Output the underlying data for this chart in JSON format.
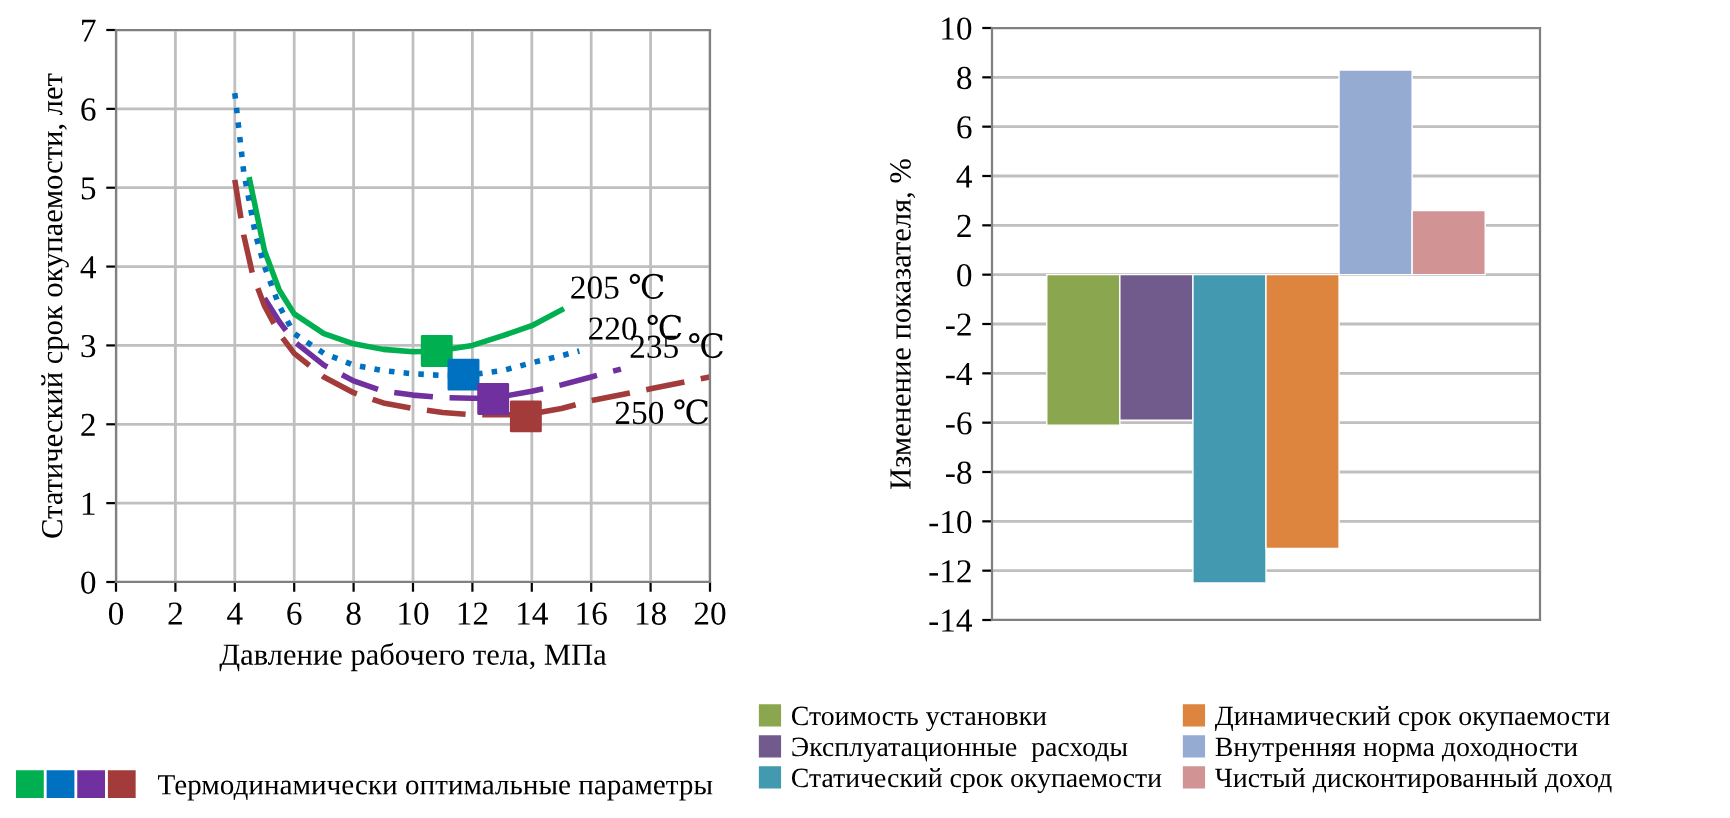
{
  "chart_data": [
    {
      "type": "line",
      "xlabel": "Давление рабочего тела, МПа",
      "ylabel": "Статический срок окупаемости, лет",
      "xlim": [
        0,
        20
      ],
      "ylim": [
        0,
        7
      ],
      "xticks": [
        0,
        2,
        4,
        6,
        8,
        10,
        12,
        14,
        16,
        18,
        20
      ],
      "yticks": [
        0,
        1,
        2,
        3,
        4,
        5,
        6,
        7
      ],
      "grid": true,
      "legend": "bottom",
      "series": [
        {
          "color": "#00b050",
          "line_style": "solid",
          "x": [
            4.5,
            5,
            5.5,
            6,
            7,
            8,
            9,
            10,
            10.8,
            12,
            13,
            14,
            15
          ],
          "values": [
            5.1,
            4.2,
            3.7,
            3.4,
            3.15,
            3.02,
            2.95,
            2.92,
            2.93,
            3.0,
            3.12,
            3.25,
            3.45
          ]
        },
        {
          "color": "#0070c0",
          "line_style": "dotted",
          "x": [
            4,
            4.3,
            4.7,
            5,
            5.5,
            6,
            7,
            8,
            9,
            10,
            11,
            11.8,
            13,
            14,
            15,
            15.6
          ],
          "values": [
            6.2,
            5.2,
            4.4,
            4.0,
            3.5,
            3.15,
            2.9,
            2.75,
            2.68,
            2.64,
            2.62,
            2.62,
            2.68,
            2.78,
            2.87,
            2.93
          ]
        },
        {
          "color": "#7030a0",
          "line_style": "dashed",
          "x": [
            5,
            5.5,
            6,
            7,
            8,
            9,
            10,
            11,
            12,
            12.7,
            14,
            15,
            16,
            17
          ],
          "values": [
            3.6,
            3.3,
            3.05,
            2.75,
            2.55,
            2.42,
            2.37,
            2.34,
            2.33,
            2.33,
            2.42,
            2.5,
            2.6,
            2.7
          ]
        },
        {
          "color": "#a33b3b",
          "line_style": "dashed",
          "x": [
            4,
            4.3,
            4.6,
            5,
            5.5,
            6,
            7,
            8,
            9,
            10,
            11,
            12,
            13,
            13.8,
            15,
            16,
            18,
            20
          ],
          "values": [
            5.1,
            4.4,
            3.9,
            3.5,
            3.15,
            2.9,
            2.6,
            2.4,
            2.27,
            2.2,
            2.15,
            2.12,
            2.12,
            2.12,
            2.2,
            2.3,
            2.45,
            2.6
          ]
        },
        {
          "type": "scatter",
          "name": "Термодинамически оптимальные параметры",
          "marker": "square",
          "x": [
            10.8,
            11.7,
            12.7,
            13.8
          ],
          "values": [
            2.93,
            2.63,
            2.32,
            2.1
          ],
          "colors": [
            "#00b050",
            "#0070c0",
            "#7030a0",
            "#a33b3b"
          ]
        }
      ],
      "annotations": [
        "205 ℃",
        "220 ℃",
        "235 ℃",
        "250 ℃"
      ]
    },
    {
      "type": "bar",
      "ylabel": "Изменение показателя, %",
      "categories": [
        null
      ],
      "ylim": [
        -14,
        10
      ],
      "yticks": [
        -14,
        -12,
        -10,
        -8,
        -6,
        -4,
        -2,
        0,
        2,
        4,
        6,
        8,
        10
      ],
      "grid": "y",
      "legend": "bottom",
      "tick_labels": "y",
      "series": [
        {
          "name": "Стоимость установки",
          "color": "#8aa64e",
          "values": [
            -6.1
          ]
        },
        {
          "name": "Эксплуатационные  расходы",
          "color": "#715a8c",
          "values": [
            -5.9
          ]
        },
        {
          "name": "Статический срок окупаемости",
          "color": "#4299b0",
          "values": [
            -12.5
          ]
        },
        {
          "name": "Динамический срок окупаемости",
          "color": "#dd843f",
          "values": [
            -11.1
          ]
        },
        {
          "name": "Внутренняя норма доходности",
          "color": "#95abd2",
          "values": [
            8.3
          ]
        },
        {
          "name": "Чистый дисконтированный доход",
          "color": "#d19393",
          "values": [
            2.6
          ]
        }
      ]
    }
  ]
}
